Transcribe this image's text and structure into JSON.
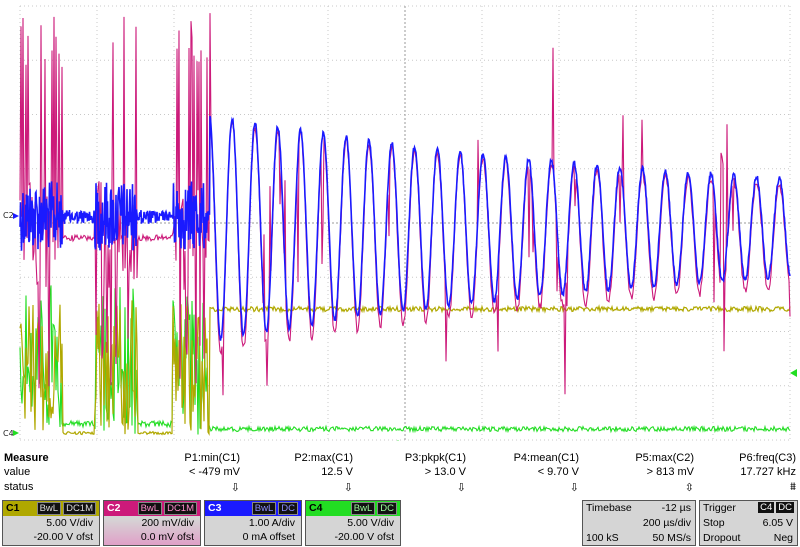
{
  "colors": {
    "c1": "#b0a800",
    "c2": "#cc1a7a",
    "c3": "#1a1aff",
    "c4": "#22dd22"
  },
  "markers": {
    "c2_label": "C2",
    "c4_label": "C4"
  },
  "measure": {
    "header": "Measure",
    "row_value": "value",
    "row_status": "status",
    "params": [
      {
        "name": "P1:min(C1)",
        "value": "< -479 mV",
        "status": "⇩"
      },
      {
        "name": "P2:max(C1)",
        "value": "12.5 V",
        "status": "⇩"
      },
      {
        "name": "P3:pkpk(C1)",
        "value": "> 13.0 V",
        "status": "⇩"
      },
      {
        "name": "P4:mean(C1)",
        "value": "< 9.70 V",
        "status": "⇩"
      },
      {
        "name": "P5:max(C2)",
        "value": "> 813 mV",
        "status": "⇳"
      },
      {
        "name": "P6:freq(C3)",
        "value": "17.727 kHz",
        "status": "⩩"
      }
    ]
  },
  "channels": [
    {
      "tag": "C1",
      "flags": [
        "BwL",
        "DC1M"
      ],
      "scale": "5.00 V/div",
      "offset": "-20.00 V ofst"
    },
    {
      "tag": "C2",
      "flags": [
        "BwL",
        "DC1M"
      ],
      "scale": "200 mV/div",
      "offset": "0.0 mV ofst"
    },
    {
      "tag": "C3",
      "flags": [
        "BwL",
        "DC"
      ],
      "scale": "1.00 A/div",
      "offset": "0 mA offset"
    },
    {
      "tag": "C4",
      "flags": [
        "BwL",
        "DC"
      ],
      "scale": "5.00 V/div",
      "offset": "-20.00 V ofst"
    }
  ],
  "timebase": {
    "label": "Timebase",
    "delay": "-12 µs",
    "scale": "200 µs/div",
    "samples": "100 kS",
    "rate": "50 MS/s"
  },
  "trigger": {
    "label": "Trigger",
    "tags": [
      "C4",
      "DC"
    ],
    "mode": "Stop",
    "level": "6.05 V",
    "type": "Dropout",
    "slope": "Neg"
  }
}
